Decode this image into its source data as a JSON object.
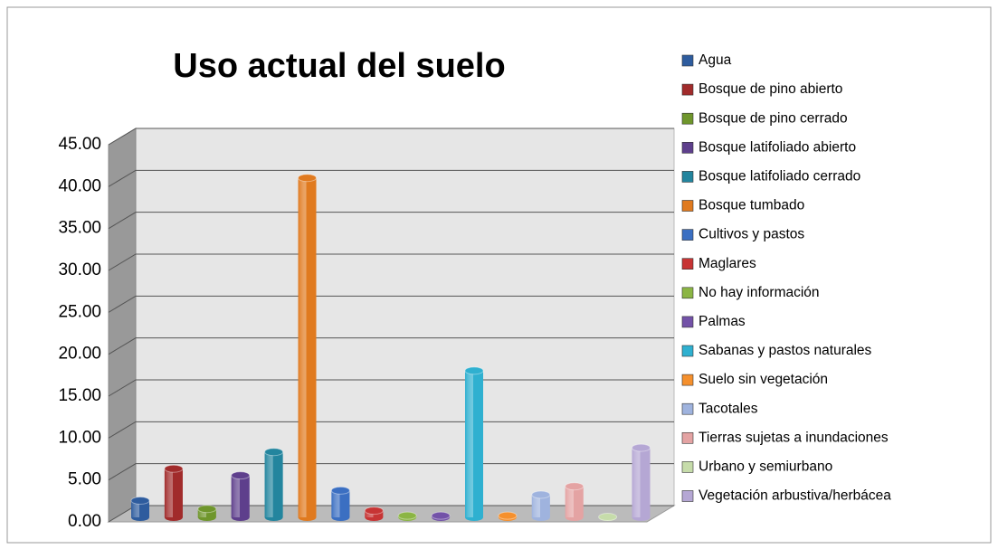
{
  "chart_data": {
    "type": "bar",
    "title": "Uso actual del suelo",
    "ylim": [
      0,
      45
    ],
    "yticks": [
      {
        "value": 0,
        "label": "0.00"
      },
      {
        "value": 5,
        "label": "5.00"
      },
      {
        "value": 10,
        "label": "10.00"
      },
      {
        "value": 15,
        "label": "15.00"
      },
      {
        "value": 20,
        "label": "20.00"
      },
      {
        "value": 25,
        "label": "25.00"
      },
      {
        "value": 30,
        "label": "30.00"
      },
      {
        "value": 35,
        "label": "35.00"
      },
      {
        "value": 40,
        "label": "40.00"
      },
      {
        "value": 45,
        "label": "45.00"
      }
    ],
    "grid": true,
    "series": [
      {
        "name": "Agua",
        "color": "#2e5c9e",
        "values": [
          2.0
        ]
      },
      {
        "name": "Bosque de pino abierto",
        "color": "#a12b2b",
        "values": [
          5.8
        ]
      },
      {
        "name": "Bosque de pino cerrado",
        "color": "#6f962c",
        "values": [
          1.0
        ]
      },
      {
        "name": "Bosque latifoliado abierto",
        "color": "#5e3f8c",
        "values": [
          5.0
        ]
      },
      {
        "name": "Bosque latifoliado cerrado",
        "color": "#23859e",
        "values": [
          7.8
        ]
      },
      {
        "name": "Bosque tumbado",
        "color": "#e07a1f",
        "values": [
          40.5
        ]
      },
      {
        "name": "Cultivos y pastos",
        "color": "#3b6fc2",
        "values": [
          3.2
        ]
      },
      {
        "name": "Maglares",
        "color": "#c73434",
        "values": [
          0.8
        ]
      },
      {
        "name": "No hay información",
        "color": "#8bb544",
        "values": [
          0.2
        ]
      },
      {
        "name": "Palmas",
        "color": "#7352a8",
        "values": [
          0.2
        ]
      },
      {
        "name": "Sabanas y pastos naturales",
        "color": "#2fb0d0",
        "values": [
          17.5
        ]
      },
      {
        "name": "Suelo sin vegetación",
        "color": "#f5902d",
        "values": [
          0.2
        ]
      },
      {
        "name": "Tacotales",
        "color": "#9fb3de",
        "values": [
          2.7
        ]
      },
      {
        "name": "Tierras sujetas a inundaciones",
        "color": "#e4a3a3",
        "values": [
          3.7
        ]
      },
      {
        "name": "Urbano y semiurbano",
        "color": "#c6dcaa",
        "values": [
          0.05
        ]
      },
      {
        "name": "Vegetación arbustiva/herbácea",
        "color": "#b5a7d4",
        "values": [
          8.3
        ]
      }
    ]
  }
}
